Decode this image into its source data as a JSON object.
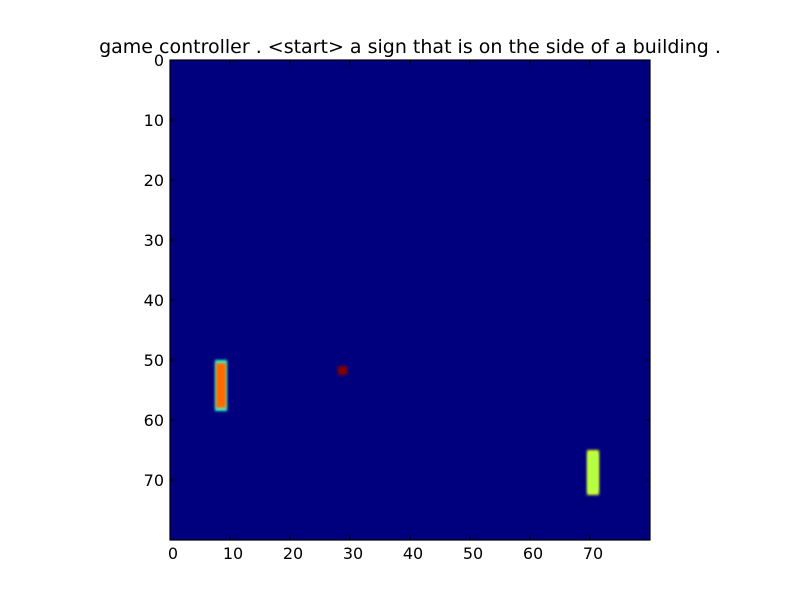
{
  "chart_data": {
    "type": "heatmap",
    "title": "game controller . <start> a sign that is on the side of a building .",
    "xlabel": "",
    "ylabel": "",
    "xlim": [
      0,
      80
    ],
    "ylim": [
      80,
      0
    ],
    "x_ticks": [
      0,
      10,
      20,
      30,
      40,
      50,
      60,
      70
    ],
    "y_ticks": [
      0,
      10,
      20,
      30,
      40,
      50,
      60,
      70
    ],
    "grid": false,
    "colormap": "jet",
    "background_color": "#00007f",
    "objects": [
      {
        "name": "left-paddle",
        "x": [
          7.5,
          9.5
        ],
        "y": [
          50,
          58.5
        ],
        "core_color": "#ff6a00",
        "edge_color": "#33ffcc"
      },
      {
        "name": "ball",
        "x": [
          28,
          29.5
        ],
        "y": [
          51,
          52.5
        ],
        "core_color": "#7f0000",
        "edge_color": "#7f0000"
      },
      {
        "name": "right-paddle",
        "x": [
          69.5,
          71.5
        ],
        "y": [
          65,
          72.5
        ],
        "core_color": "#b5ff42",
        "edge_color": "#d7ff2a"
      }
    ]
  }
}
